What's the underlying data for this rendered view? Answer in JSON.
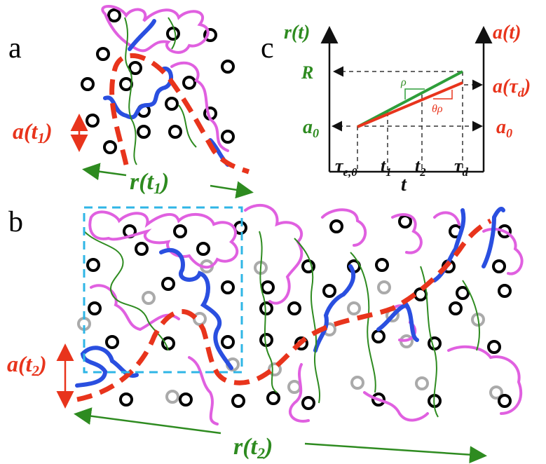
{
  "panel_a": {
    "label": "a",
    "height": [
      "a(t",
      "1",
      ")"
    ],
    "length": [
      "r(t",
      "1",
      ")"
    ]
  },
  "panel_b": {
    "label": "b",
    "height": [
      "a(t",
      "2",
      ")"
    ],
    "length": [
      "r(t",
      "2",
      ")"
    ]
  },
  "panel_c": {
    "label": "c",
    "left_axis": "r(t)",
    "right_axis": "a(t)",
    "R": "R",
    "a_tau_d": [
      "a(τ",
      "d",
      ")"
    ],
    "a0_left": [
      "a",
      "0"
    ],
    "a0_right": [
      "a",
      "0"
    ],
    "rho": "ρ",
    "theta_rho": "θρ",
    "ticks": [
      [
        "τ",
        "e,0"
      ],
      [
        "t",
        "1"
      ],
      [
        "t",
        "2"
      ],
      [
        "τ",
        "d"
      ]
    ],
    "x_axis": "t"
  }
}
